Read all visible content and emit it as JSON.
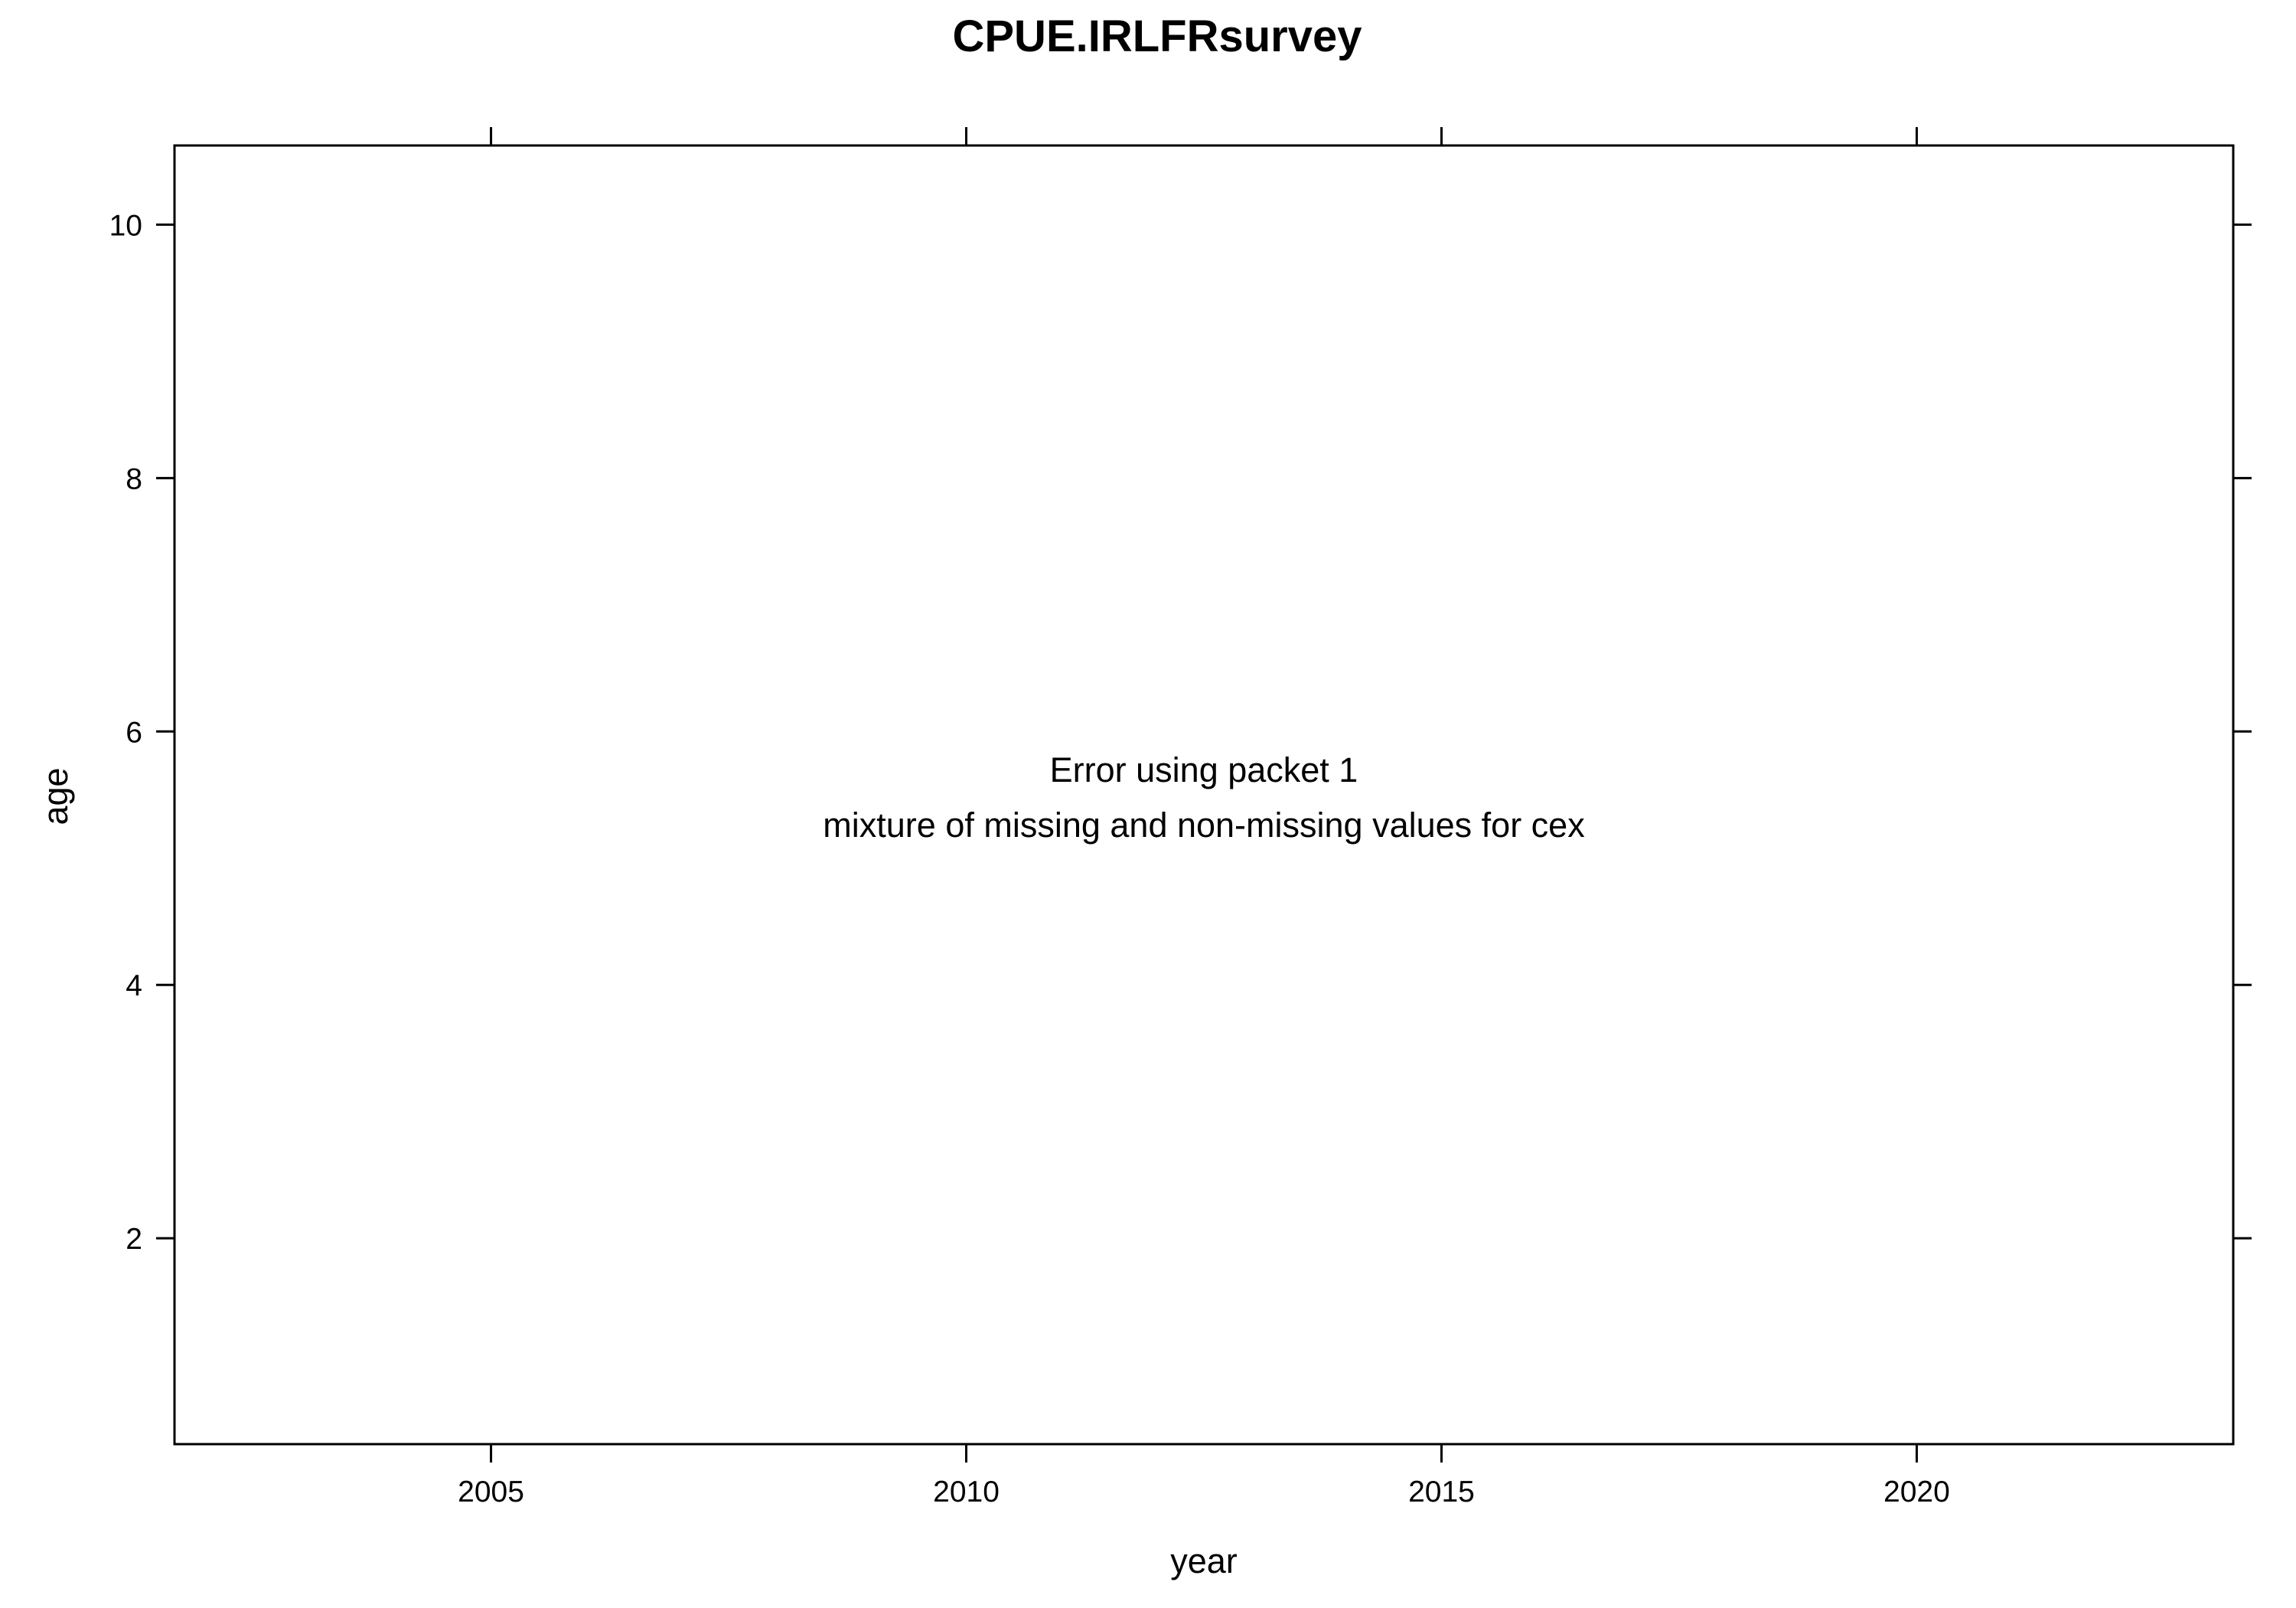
{
  "chart_data": {
    "type": "scatter",
    "title": "CPUE.IRLFRsurvey",
    "xlabel": "year",
    "ylabel": "age",
    "xlim": [
      2001.67,
      2023.33
    ],
    "ylim": [
      0.375,
      10.625
    ],
    "x_ticks": [
      2005,
      2010,
      2015,
      2020
    ],
    "y_ticks": [
      2,
      4,
      6,
      8,
      10
    ],
    "grid": false,
    "series": [],
    "panel_message": [
      "Error using packet 1",
      "mixture of missing and non-missing values for cex"
    ]
  }
}
